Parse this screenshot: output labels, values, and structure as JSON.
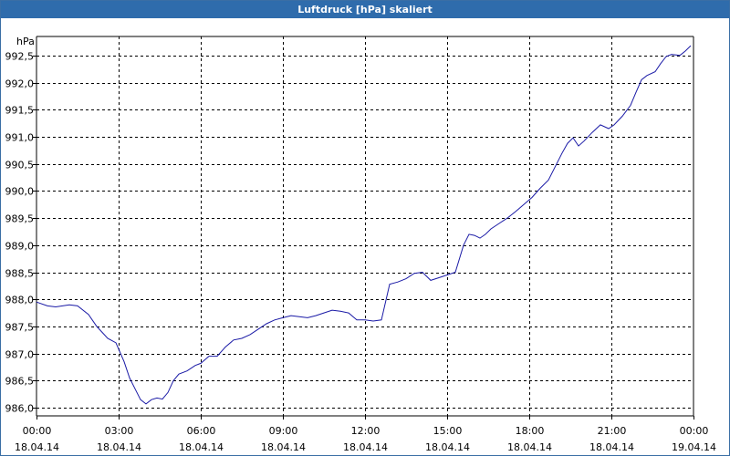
{
  "window": {
    "title": "Luftdruck [hPa] skaliert"
  },
  "colors": {
    "titlebar": "#2f6cac",
    "line": "#1a1aa6",
    "grid": "#000000",
    "axis": "#000000"
  },
  "chart_data": {
    "type": "line",
    "title": "Luftdruck [hPa] skaliert",
    "ylabel": "hPa",
    "xlabel": "",
    "grid": true,
    "xlim": [
      0,
      24
    ],
    "ylim": [
      985.85,
      992.85
    ],
    "y_ticks": [
      {
        "value": 986.0,
        "label": "986,0"
      },
      {
        "value": 986.5,
        "label": "986,5"
      },
      {
        "value": 987.0,
        "label": "987,0"
      },
      {
        "value": 987.5,
        "label": "987,5"
      },
      {
        "value": 988.0,
        "label": "988,0"
      },
      {
        "value": 988.5,
        "label": "988,5"
      },
      {
        "value": 989.0,
        "label": "989,0"
      },
      {
        "value": 989.5,
        "label": "989,5"
      },
      {
        "value": 990.0,
        "label": "990,0"
      },
      {
        "value": 990.5,
        "label": "990,5"
      },
      {
        "value": 991.0,
        "label": "991,0"
      },
      {
        "value": 991.5,
        "label": "991,5"
      },
      {
        "value": 992.0,
        "label": "992,0"
      },
      {
        "value": 992.5,
        "label": "992,5"
      }
    ],
    "x_ticks": [
      {
        "value": 0,
        "time": "00:00",
        "date": "18.04.14"
      },
      {
        "value": 3,
        "time": "03:00",
        "date": "18.04.14"
      },
      {
        "value": 6,
        "time": "06:00",
        "date": "18.04.14"
      },
      {
        "value": 9,
        "time": "09:00",
        "date": "18.04.14"
      },
      {
        "value": 12,
        "time": "12:00",
        "date": "18.04.14"
      },
      {
        "value": 15,
        "time": "15:00",
        "date": "18.04.14"
      },
      {
        "value": 18,
        "time": "18:00",
        "date": "18.04.14"
      },
      {
        "value": 21,
        "time": "21:00",
        "date": "18.04.14"
      },
      {
        "value": 24,
        "time": "00:00",
        "date": "19.04.14"
      }
    ],
    "series": [
      {
        "x": [
          0,
          0.4,
          0.7,
          1.2,
          1.5,
          1.9,
          2.2,
          2.6,
          2.9,
          3.2,
          3.4,
          3.6,
          3.8,
          4.0,
          4.2,
          4.4,
          4.6,
          4.8,
          5.0,
          5.2,
          5.5,
          5.8,
          6.0,
          6.3,
          6.6,
          6.9,
          7.2,
          7.5,
          7.8,
          8.1,
          8.4,
          8.7,
          9.0,
          9.3,
          9.6,
          9.9,
          10.2,
          10.5,
          10.8,
          11.1,
          11.4,
          11.7,
          12.0,
          12.3,
          12.6,
          12.9,
          13.2,
          13.5,
          13.8,
          14.1,
          14.4,
          14.7,
          15.0,
          15.3,
          15.6,
          15.8,
          16.0,
          16.2,
          16.4,
          16.6,
          16.9,
          17.2,
          17.5,
          17.8,
          18.1,
          18.4,
          18.7,
          19.0,
          19.2,
          19.4,
          19.6,
          19.8,
          20.0,
          20.3,
          20.6,
          20.9,
          21.1,
          21.4,
          21.7,
          21.9,
          22.1,
          22.3,
          22.6,
          22.8,
          23.0,
          23.2,
          23.5,
          23.7,
          23.9
        ],
        "y": [
          987.95,
          987.88,
          987.86,
          987.9,
          987.88,
          987.72,
          987.5,
          987.28,
          987.2,
          986.85,
          986.55,
          986.35,
          986.15,
          986.07,
          986.15,
          986.18,
          986.16,
          986.28,
          986.5,
          986.62,
          986.68,
          986.78,
          986.82,
          986.95,
          986.95,
          987.12,
          987.25,
          987.28,
          987.35,
          987.45,
          987.55,
          987.62,
          987.66,
          987.7,
          987.68,
          987.66,
          987.7,
          987.75,
          987.8,
          987.78,
          987.75,
          987.62,
          987.62,
          987.6,
          987.62,
          988.28,
          988.32,
          988.38,
          988.48,
          988.5,
          988.35,
          988.4,
          988.45,
          988.5,
          989.0,
          989.2,
          989.18,
          989.13,
          989.2,
          989.3,
          989.4,
          989.5,
          989.62,
          989.75,
          989.88,
          990.05,
          990.2,
          990.5,
          990.7,
          990.88,
          990.98,
          990.83,
          990.92,
          991.08,
          991.22,
          991.15,
          991.22,
          991.38,
          991.58,
          991.82,
          992.05,
          992.13,
          992.2,
          992.35,
          992.48,
          992.52,
          992.5,
          992.58,
          992.68
        ]
      }
    ]
  }
}
